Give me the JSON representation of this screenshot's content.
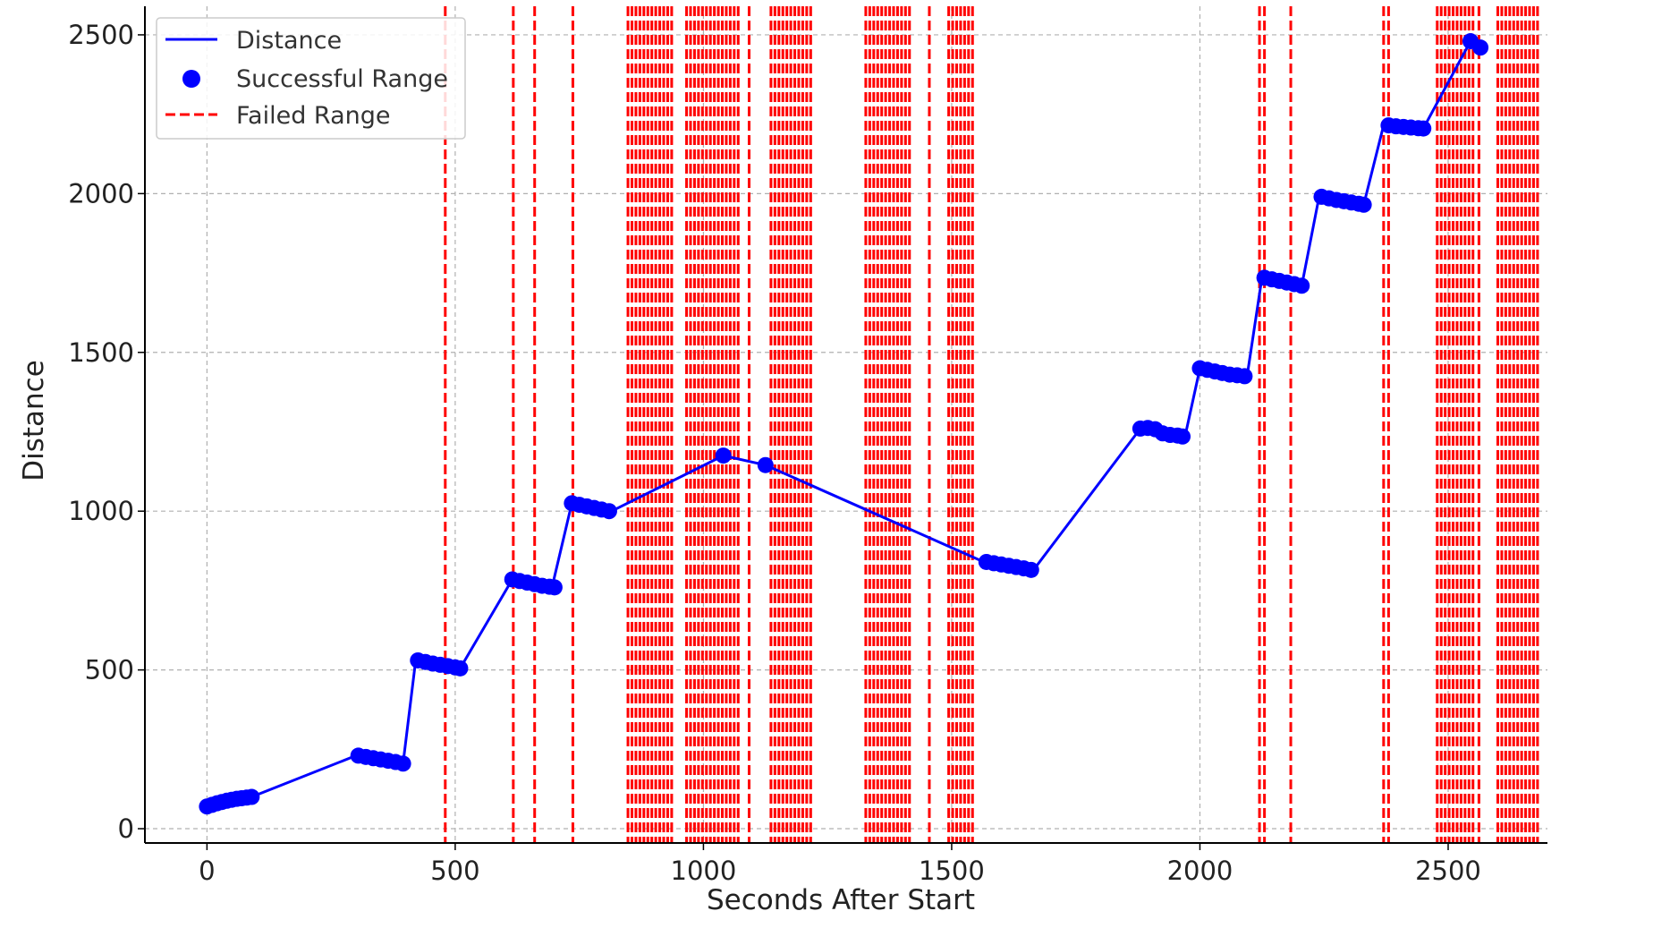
{
  "chart_data": {
    "type": "line",
    "title": "",
    "xlabel": "Seconds After Start",
    "ylabel": "Distance",
    "xlim": [
      -125,
      2700
    ],
    "ylim": [
      -45,
      2590
    ],
    "xticks": [
      0,
      500,
      1000,
      1500,
      2000,
      2500
    ],
    "yticks": [
      0,
      500,
      1000,
      1500,
      2000,
      2500
    ],
    "grid": true,
    "legend_position": "top-left",
    "colors": {
      "line": "#0000ff",
      "points": "#0000ff",
      "failed": "#ff0000",
      "grid": "#b0b0b0"
    },
    "series": [
      {
        "name": "Distance",
        "kind": "line",
        "x": [
          0,
          90,
          300,
          395,
          420,
          510,
          615,
          695,
          735,
          815,
          1040,
          1125,
          1565,
          1665,
          1880,
          1970,
          2000,
          2095,
          2125,
          2205,
          2240,
          2330,
          2370,
          2450,
          2545,
          2570
        ],
        "y": [
          70,
          100,
          230,
          205,
          525,
          505,
          785,
          760,
          1025,
          1000,
          1175,
          1145,
          840,
          815,
          1260,
          1235,
          1450,
          1425,
          1735,
          1710,
          1990,
          1965,
          2215,
          2205,
          2480,
          2460
        ]
      },
      {
        "name": "Successful Range",
        "kind": "scatter",
        "x": [
          0,
          10,
          20,
          30,
          40,
          50,
          60,
          70,
          80,
          90,
          305,
          320,
          335,
          350,
          365,
          380,
          395,
          425,
          440,
          455,
          470,
          485,
          500,
          510,
          615,
          630,
          645,
          660,
          675,
          690,
          700,
          735,
          750,
          765,
          780,
          795,
          810,
          1040,
          1125,
          1570,
          1585,
          1600,
          1615,
          1630,
          1645,
          1660,
          1880,
          1895,
          1910,
          1925,
          1940,
          1955,
          1965,
          2000,
          2015,
          2030,
          2045,
          2060,
          2075,
          2090,
          2130,
          2145,
          2160,
          2175,
          2190,
          2205,
          2245,
          2260,
          2275,
          2290,
          2305,
          2320,
          2330,
          2380,
          2395,
          2410,
          2425,
          2440,
          2450,
          2545,
          2565
        ],
        "y": [
          70,
          75,
          80,
          84,
          88,
          91,
          94,
          96,
          98,
          100,
          230,
          226,
          222,
          218,
          214,
          210,
          205,
          530,
          525,
          520,
          516,
          512,
          508,
          505,
          785,
          780,
          775,
          770,
          765,
          762,
          760,
          1025,
          1020,
          1015,
          1010,
          1005,
          1000,
          1175,
          1145,
          840,
          836,
          832,
          828,
          824,
          820,
          815,
          1260,
          1262,
          1258,
          1245,
          1240,
          1238,
          1235,
          1450,
          1445,
          1440,
          1435,
          1430,
          1428,
          1425,
          1735,
          1730,
          1725,
          1720,
          1715,
          1710,
          1990,
          1985,
          1980,
          1976,
          1972,
          1968,
          1965,
          2215,
          2212,
          2210,
          2208,
          2206,
          2205,
          2480,
          2460
        ]
      },
      {
        "name": "Failed Range",
        "kind": "vlines",
        "x": [
          480,
          617,
          660,
          737,
          848,
          856,
          864,
          872,
          880,
          888,
          896,
          904,
          912,
          920,
          928,
          936,
          966,
          974,
          982,
          990,
          998,
          1006,
          1014,
          1022,
          1030,
          1038,
          1046,
          1054,
          1062,
          1070,
          1092,
          1136,
          1144,
          1152,
          1160,
          1168,
          1176,
          1184,
          1192,
          1200,
          1208,
          1216,
          1327,
          1335,
          1343,
          1351,
          1359,
          1367,
          1375,
          1383,
          1391,
          1399,
          1407,
          1415,
          1455,
          1494,
          1502,
          1510,
          1518,
          1526,
          1534,
          1542,
          2120,
          2130,
          2183,
          2370,
          2380,
          2478,
          2486,
          2494,
          2502,
          2510,
          2518,
          2526,
          2534,
          2542,
          2550,
          2562,
          2600,
          2608,
          2616,
          2624,
          2632,
          2640,
          2648,
          2656,
          2664,
          2672,
          2680
        ]
      }
    ]
  }
}
